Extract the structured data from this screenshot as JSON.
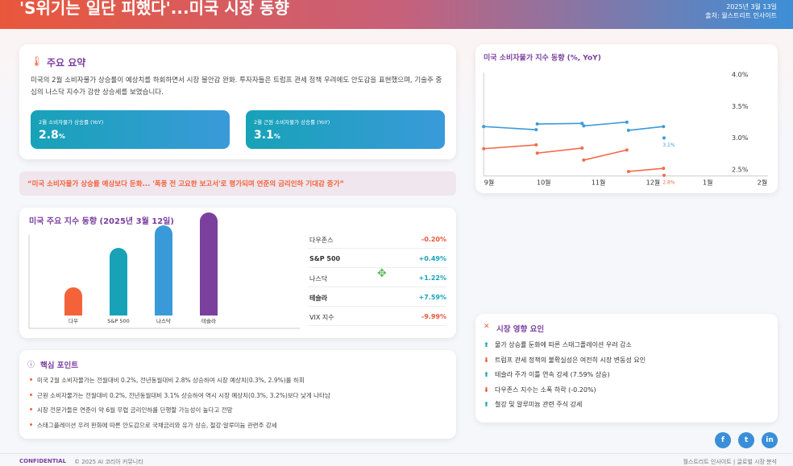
{
  "header": {
    "title": "'S위기는 일단 피했다'...미국 시장 동향",
    "date": "2025년 3월 13일",
    "source": "출처: 월스트리트 인사이트"
  },
  "summary": {
    "title": "주요 요약",
    "text": "미국의 2월 소비자물가 상승률이 예상치를 하회하면서 시장 불안감 완화. 투자자들은 트럼프 관세 정책 우려에도 안도감을 표현했으며, 기술주 중심의 나스닥 지수가 강한 상승세를 보였습니다.",
    "stats": [
      {
        "label": "2월 소비자물가 상승률 (YoY)",
        "value": "2.8",
        "unit": "%"
      },
      {
        "label": "2월 근원 소비자물가 상승률 (YoY)",
        "value": "3.1",
        "unit": "%"
      }
    ]
  },
  "quote": "“미국 소비자물가 상승률 예상보다 둔화... '폭풍 전 고요한 보고서'로 평가되며 연준의 금리인하 기대감 증가”",
  "table": {
    "rows": [
      [
        "다우존스",
        "-0.20%"
      ],
      [
        "S&P 500",
        "+0.49%"
      ],
      [
        "나스닥",
        "+1.22%"
      ],
      [
        "테슬라",
        "+7.59%"
      ],
      [
        "VIX 지수",
        "-9.99%"
      ]
    ]
  },
  "key_points": {
    "title": "핵심 포인트",
    "items": [
      "미국 2월 소비자물가는 전월대비 0.2%, 전년동월대비 2.8% 상승하여 시장 예상치(0.3%, 2.9%)를 하회",
      "근원 소비자물가는 전월대비 0.2%, 전년동월대비 3.1% 상승하여 역시 시장 예상치(0.3%, 3.2%)보다 낮게 나타남",
      "시장 전문가들은 연준이 약 6월 무렵 금리인하를 단행할 가능성이 높다고 전망",
      "스태그플레이션 우려 완화에 따른 안도감으로 국채금리와 유가 상승, 철강·알루미늄 관련주 강세"
    ]
  },
  "impact": {
    "title": "시장 영향 요인",
    "items": [
      {
        "direction": "up",
        "text": "물가 상승률 둔화에 따른 스태그플레이션 우려 감소"
      },
      {
        "direction": "down",
        "text": "트럼프 관세 정책의 불확실성은 여전히 시장 변동성 요인"
      },
      {
        "direction": "up",
        "text": "테슬라 주가 이틀 연속 강세 (7.59% 상승)"
      },
      {
        "direction": "down",
        "text": "다우존스 지수는 소폭 하락 (-0.20%)"
      },
      {
        "direction": "up",
        "text": "철강 및 알루미늄 관련 주식 강세"
      }
    ]
  },
  "social": [
    "f",
    "t",
    "in"
  ],
  "footer": {
    "left": "CONFIDENTIAL",
    "copyright": "© 2025 AI 코리아 커뮤니티",
    "right": "월스트리트 인사이트 | 글로벌 시장 분석"
  },
  "chart_data": [
    {
      "type": "line",
      "title": "미국 소비자물가 지수 동향 (%, YoY)",
      "x": [
        -0.1,
        0.86,
        null,
        0.88,
        1.7,
        null,
        1.73,
        2.52,
        null,
        2.55,
        3.19,
        null,
        3.2
      ],
      "xlim": [
        -0.1,
        5.1
      ],
      "xticks": [
        {
          "value": 0,
          "label": "9월"
        },
        {
          "value": 1,
          "label": "10월"
        },
        {
          "value": 2,
          "label": "11월"
        },
        {
          "value": 3,
          "label": "12월"
        },
        {
          "value": 4,
          "label": "1월"
        },
        {
          "value": 5,
          "label": "2월"
        }
      ],
      "ylim": [
        2.43,
        4.06
      ],
      "yticks": [
        {
          "value": 4.0,
          "label": "4.0%"
        },
        {
          "value": 3.5,
          "label": "3.5%"
        },
        {
          "value": 3.0,
          "label": "3.0%"
        },
        {
          "value": 2.5,
          "label": "2.5%"
        }
      ],
      "series": [
        {
          "color": "#3b9ad9",
          "values": [
            3.21,
            3.16,
            null,
            3.25,
            3.26,
            null,
            3.22,
            3.28,
            null,
            3.15,
            3.21,
            null,
            3.03
          ]
        },
        {
          "color": "#f26b4b",
          "values": [
            2.86,
            2.92,
            null,
            2.79,
            2.87,
            null,
            2.68,
            2.84,
            null,
            2.5,
            2.55,
            null,
            2.44
          ]
        }
      ],
      "annotations": [
        {
          "text": "3.1%",
          "color": "#3b9ad9"
        },
        {
          "text": "2.8%",
          "color": "#f26b4b"
        }
      ]
    },
    {
      "type": "bar",
      "title": "미국 주요 지수 동향 (2025년 3월 12일)",
      "categories": [
        "다우",
        "S&P 500",
        "나스닥",
        "테슬라"
      ],
      "values": [
        35,
        84,
        112,
        128
      ],
      "colors": [
        "#f4623a",
        "#17a2b8",
        "#3a9ad9",
        "#7b3f9e"
      ],
      "ylim": [
        0,
        130
      ]
    }
  ]
}
